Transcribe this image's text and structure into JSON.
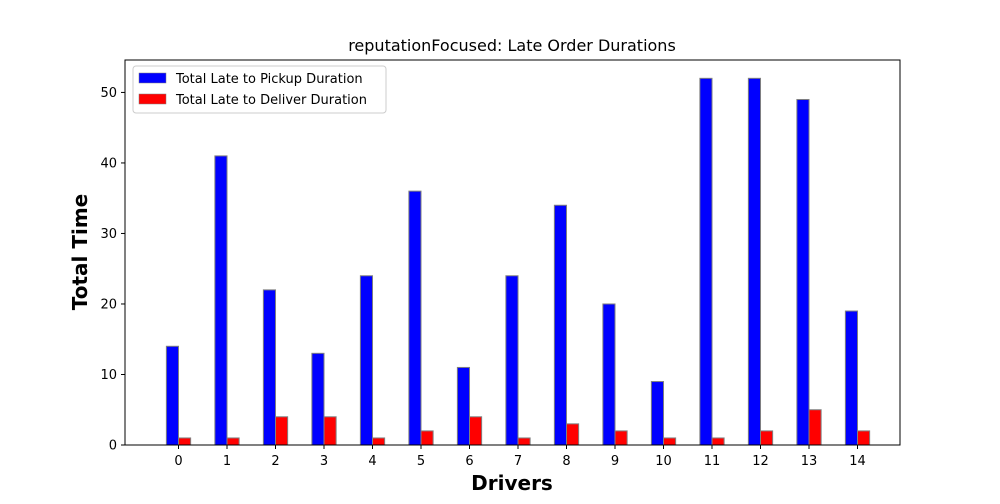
{
  "chart_data": {
    "type": "bar",
    "title": "reputationFocused: Late Order Durations",
    "xlabel": "Drivers",
    "ylabel": "Total Time",
    "categories": [
      "0",
      "1",
      "2",
      "3",
      "4",
      "5",
      "6",
      "7",
      "8",
      "9",
      "10",
      "11",
      "12",
      "13",
      "14"
    ],
    "ylim": [
      0,
      54.6
    ],
    "yticks": [
      0,
      10,
      20,
      30,
      40,
      50
    ],
    "grid": false,
    "legend_position": "top-left",
    "series": [
      {
        "name": "Total Late to Pickup Duration",
        "color": "#0000ff",
        "values": [
          14,
          41,
          22,
          13,
          24,
          36,
          11,
          24,
          34,
          20,
          9,
          52,
          52,
          49,
          19
        ]
      },
      {
        "name": "Total Late to Deliver Duration",
        "color": "#ff0000",
        "values": [
          1,
          1,
          4,
          4,
          1,
          2,
          4,
          1,
          3,
          2,
          1,
          1,
          2,
          5,
          2
        ]
      }
    ],
    "bar_edge_color": "#808080"
  }
}
